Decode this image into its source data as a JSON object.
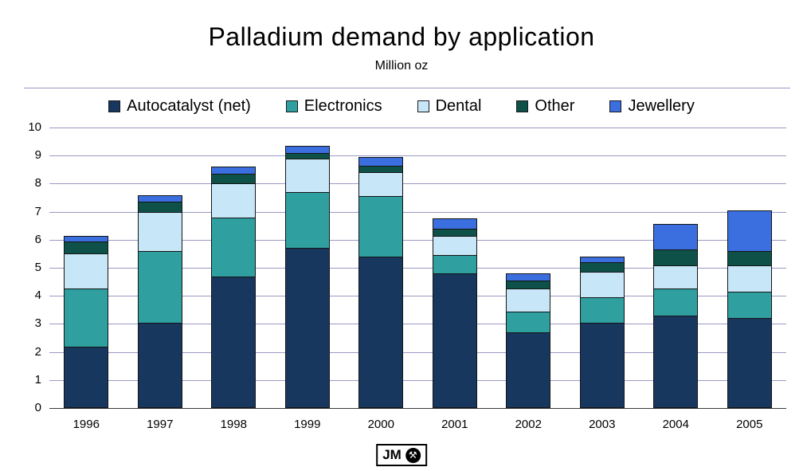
{
  "chart_data": {
    "type": "bar",
    "stacked": true,
    "title": "Palladium demand by application",
    "subtitle": "Million oz",
    "categories": [
      "1996",
      "1997",
      "1998",
      "1999",
      "2000",
      "2001",
      "2002",
      "2003",
      "2004",
      "2005"
    ],
    "series": [
      {
        "name": "Autocatalyst (net)",
        "color": "#17375E",
        "values": [
          2.2,
          3.05,
          4.7,
          5.7,
          5.4,
          4.8,
          2.7,
          3.05,
          3.3,
          3.2
        ]
      },
      {
        "name": "Electronics",
        "color": "#2F9F9F",
        "values": [
          2.05,
          2.55,
          2.1,
          2.0,
          2.15,
          0.65,
          0.75,
          0.9,
          0.95,
          0.95
        ]
      },
      {
        "name": "Dental",
        "color": "#C7E7F8",
        "values": [
          1.25,
          1.4,
          1.2,
          1.2,
          0.85,
          0.7,
          0.8,
          0.9,
          0.85,
          0.95
        ]
      },
      {
        "name": "Other",
        "color": "#0D5148",
        "values": [
          0.45,
          0.35,
          0.35,
          0.2,
          0.25,
          0.25,
          0.3,
          0.35,
          0.55,
          0.5
        ]
      },
      {
        "name": "Jewellery",
        "color": "#3B6FE0",
        "values": [
          0.2,
          0.25,
          0.25,
          0.25,
          0.3,
          0.35,
          0.25,
          0.2,
          0.9,
          1.45
        ]
      }
    ],
    "ylim": [
      0,
      10
    ],
    "ytick_interval": 1,
    "grid": true,
    "legend_position": "top"
  },
  "logo": {
    "text": "JM",
    "icon": "hammer-and-pick-icon"
  }
}
